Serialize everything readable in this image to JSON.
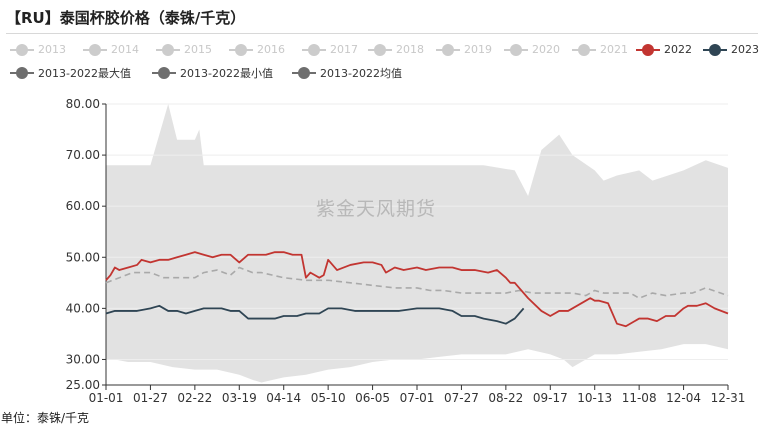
{
  "title": "【RU】泰国杯胶价格（泰铢/千克）",
  "unit_label": "单位：泰铢/千克",
  "watermark": "紫金天风期货",
  "colors": {
    "y2022": "#c23531",
    "y2023": "#2f4554",
    "inactive": "#cccccc",
    "band": "#e2e2e2",
    "avg": "#a9a9a9",
    "axis": "#333333",
    "grid": "#eeeeee"
  },
  "chart_data": {
    "type": "line",
    "title": "【RU】泰国杯胶价格（泰铢/千克）",
    "ylabel": "单位：泰铢/千克",
    "ylim": [
      25,
      80
    ],
    "y_ticks": [
      "80.00",
      "70.00",
      "60.00",
      "50.00",
      "40.00",
      "30.00",
      "25.00"
    ],
    "x_ticks": [
      "01-01",
      "01-27",
      "02-22",
      "03-19",
      "04-14",
      "05-10",
      "06-05",
      "07-01",
      "07-27",
      "08-22",
      "09-17",
      "10-13",
      "11-08",
      "12-04",
      "12-31"
    ],
    "legend": [
      {
        "name": "2013",
        "active": false
      },
      {
        "name": "2014",
        "active": false
      },
      {
        "name": "2015",
        "active": false
      },
      {
        "name": "2016",
        "active": false
      },
      {
        "name": "2017",
        "active": false
      },
      {
        "name": "2018",
        "active": false
      },
      {
        "name": "2019",
        "active": false
      },
      {
        "name": "2020",
        "active": false
      },
      {
        "name": "2021",
        "active": false
      },
      {
        "name": "2022",
        "active": true,
        "color": "#c23531"
      },
      {
        "name": "2023",
        "active": true,
        "color": "#2f4554"
      },
      {
        "name": "2013-2022最大值",
        "active": true,
        "color": "#6e6e6e"
      },
      {
        "name": "2013-2022最小值",
        "active": true,
        "color": "#6e6e6e"
      },
      {
        "name": "2013-2022均值",
        "active": true,
        "color": "#6e6e6e"
      }
    ],
    "series": [
      {
        "name": "2013-2022最大值",
        "x": [
          0,
          0.4,
          1,
          1.2,
          1.4,
          1.6,
          1.7,
          2,
          2.1,
          2.2,
          3,
          4,
          5,
          5.3,
          6,
          7,
          8,
          8.5,
          9.2,
          9.5,
          9.8,
          10.2,
          10.5,
          11,
          11.2,
          11.5,
          12,
          12.3,
          13,
          13.5,
          14
        ],
        "y": [
          68,
          68,
          68,
          74,
          80,
          73,
          73,
          73,
          75,
          68,
          68,
          68,
          68,
          68,
          68,
          68,
          68,
          68,
          67,
          62,
          71,
          74,
          70,
          67,
          65,
          66,
          67,
          65,
          67,
          69,
          67.5
        ]
      },
      {
        "name": "2013-2022最小值",
        "x": [
          0,
          0.2,
          0.5,
          1,
          1.5,
          2,
          2.5,
          3,
          3.3,
          3.5,
          4,
          4.5,
          5,
          5.5,
          6,
          6.5,
          7,
          7.5,
          8,
          8.5,
          9,
          9.5,
          10,
          10.3,
          10.5,
          11,
          11.5,
          12,
          12.5,
          13,
          13.5,
          14
        ],
        "y": [
          30,
          30,
          29.5,
          29.5,
          28.5,
          28,
          28,
          27,
          26,
          25.5,
          26.5,
          27,
          28,
          28.5,
          29.5,
          30,
          30,
          30.5,
          31,
          31,
          31,
          32,
          31,
          30,
          28.5,
          31,
          31,
          31.5,
          32,
          33,
          33,
          32
        ]
      },
      {
        "name": "2013-2022均值",
        "x": [
          0,
          0.3,
          0.6,
          0.8,
          1,
          1.3,
          1.6,
          2,
          2.2,
          2.5,
          2.8,
          3,
          3.3,
          3.5,
          4,
          4.5,
          5,
          5.5,
          6,
          6.5,
          7,
          7.3,
          7.6,
          8,
          8.5,
          9,
          9.3,
          9.6,
          10,
          10.3,
          10.5,
          10.8,
          11,
          11.2,
          11.5,
          11.8,
          12,
          12.3,
          12.6,
          13,
          13.2,
          13.5,
          14
        ],
        "y": [
          45,
          46,
          47,
          47,
          47,
          46,
          46,
          46,
          47,
          47.5,
          46.5,
          48,
          47,
          47,
          46,
          45.5,
          45.5,
          45,
          44.5,
          44,
          44,
          43.5,
          43.5,
          43,
          43,
          43,
          43.5,
          43,
          43,
          43,
          43,
          42.5,
          43.5,
          43,
          43,
          43,
          42,
          43,
          42.5,
          43,
          43,
          44,
          42.5
        ]
      },
      {
        "name": "2022",
        "x": [
          0,
          0.1,
          0.2,
          0.3,
          0.5,
          0.7,
          0.8,
          1,
          1.2,
          1.4,
          1.6,
          1.8,
          2,
          2.2,
          2.4,
          2.6,
          2.8,
          3,
          3.2,
          3.4,
          3.6,
          3.8,
          4,
          4.2,
          4.4,
          4.5,
          4.6,
          4.7,
          4.8,
          4.9,
          5,
          5.2,
          5.5,
          5.8,
          6,
          6.2,
          6.3,
          6.5,
          6.7,
          7,
          7.2,
          7.5,
          7.8,
          8,
          8.3,
          8.6,
          8.8,
          9,
          9.1,
          9.2,
          9.3,
          9.5,
          9.8,
          10,
          10.2,
          10.4,
          10.6,
          10.8,
          10.9,
          11,
          11.1,
          11.3,
          11.5,
          11.7,
          12,
          12.2,
          12.4,
          12.6,
          12.8,
          13,
          13.1,
          13.3,
          13.5,
          13.7,
          14
        ],
        "y": [
          45.5,
          46.5,
          48,
          47.5,
          48,
          48.5,
          49.5,
          49,
          49.5,
          49.5,
          50,
          50.5,
          51,
          50.5,
          50,
          50.5,
          50.5,
          49,
          50.5,
          50.5,
          50.5,
          51,
          51,
          50.5,
          50.5,
          46,
          47,
          46.5,
          46,
          46.5,
          49.5,
          47.5,
          48.5,
          49,
          49,
          48.5,
          47,
          48,
          47.5,
          48,
          47.5,
          48,
          48,
          47.5,
          47.5,
          47,
          47.5,
          46,
          45,
          45,
          44,
          42,
          39.5,
          38.5,
          39.5,
          39.5,
          40.5,
          41.5,
          42,
          41.5,
          41.5,
          41,
          37,
          36.5,
          38,
          38,
          37.5,
          38.5,
          38.5,
          40,
          40.5,
          40.5,
          41,
          40,
          39
        ]
      },
      {
        "name": "2023",
        "x": [
          0,
          0.2,
          0.4,
          0.7,
          1,
          1.2,
          1.4,
          1.6,
          1.8,
          2,
          2.2,
          2.4,
          2.6,
          2.8,
          3,
          3.2,
          3.5,
          3.8,
          4,
          4.3,
          4.5,
          4.8,
          5,
          5.3,
          5.6,
          6,
          6.3,
          6.6,
          7,
          7.2,
          7.5,
          7.8,
          8,
          8.3,
          8.5,
          8.8,
          9,
          9.2,
          9.4
        ],
        "y": [
          39,
          39.5,
          39.5,
          39.5,
          40,
          40.5,
          39.5,
          39.5,
          39,
          39.5,
          40,
          40,
          40,
          39.5,
          39.5,
          38,
          38,
          38,
          38.5,
          38.5,
          39,
          39,
          40,
          40,
          39.5,
          39.5,
          39.5,
          39.5,
          40,
          40,
          40,
          39.5,
          38.5,
          38.5,
          38,
          37.5,
          37,
          38,
          40
        ]
      }
    ]
  }
}
